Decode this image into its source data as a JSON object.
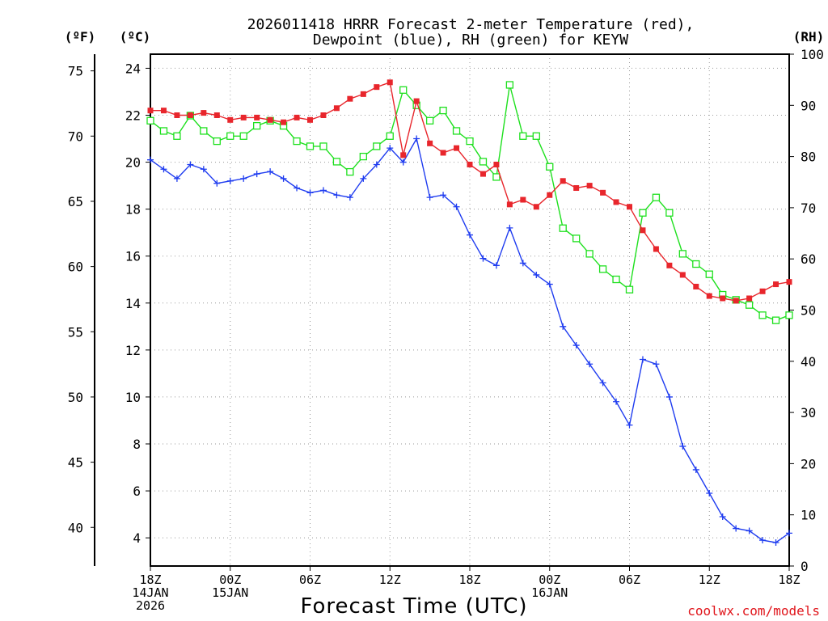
{
  "chart_data": {
    "type": "line",
    "title": [
      "2026011418 HRRR Forecast 2-meter Temperature (red),",
      "Dewpoint (blue), RH (green) for KEYW"
    ],
    "xlabel": "Forecast Time (UTC)",
    "credit": "coolwx.com/models",
    "unit_labels": {
      "fahrenheit": "(ºF)",
      "celsius": "(ºC)",
      "rh": "(RH)"
    },
    "ylim_celsius": [
      2.8,
      24.6
    ],
    "ylim_rh": [
      0,
      100
    ],
    "celsius_ticks": [
      4,
      6,
      8,
      10,
      12,
      14,
      16,
      18,
      20,
      22,
      24
    ],
    "fahrenheit_ticks": [
      40,
      45,
      50,
      55,
      60,
      65,
      70,
      75
    ],
    "rh_ticks": [
      0,
      10,
      20,
      30,
      40,
      50,
      60,
      70,
      80,
      90,
      100
    ],
    "x_ticks": [
      {
        "hour": 0,
        "lines": [
          "18Z",
          "14JAN",
          "2026"
        ]
      },
      {
        "hour": 6,
        "lines": [
          "00Z",
          "15JAN"
        ]
      },
      {
        "hour": 12,
        "lines": [
          "06Z"
        ]
      },
      {
        "hour": 18,
        "lines": [
          "12Z"
        ]
      },
      {
        "hour": 24,
        "lines": [
          "18Z"
        ]
      },
      {
        "hour": 30,
        "lines": [
          "00Z",
          "16JAN"
        ]
      },
      {
        "hour": 36,
        "lines": [
          "06Z"
        ]
      },
      {
        "hour": 42,
        "lines": [
          "12Z"
        ]
      },
      {
        "hour": 48,
        "lines": [
          "18Z"
        ]
      }
    ],
    "x_hours": [
      0,
      1,
      2,
      3,
      4,
      5,
      6,
      7,
      8,
      9,
      10,
      11,
      12,
      13,
      14,
      15,
      16,
      17,
      18,
      19,
      20,
      21,
      22,
      23,
      24,
      25,
      26,
      27,
      28,
      29,
      30,
      31,
      32,
      33,
      34,
      35,
      36,
      37,
      38,
      39,
      40,
      41,
      42,
      43,
      44,
      45,
      46,
      47,
      48
    ],
    "series": [
      {
        "name": "Temperature",
        "unit": "C",
        "color": "#e8262c",
        "marker": "filled-square",
        "values": [
          22.2,
          22.2,
          22.0,
          22.0,
          22.1,
          22.0,
          21.8,
          21.9,
          21.9,
          21.8,
          21.7,
          21.9,
          21.8,
          22.0,
          22.3,
          22.7,
          22.9,
          23.2,
          23.4,
          20.3,
          22.6,
          20.8,
          20.4,
          20.6,
          19.9,
          19.5,
          19.9,
          18.2,
          18.4,
          18.1,
          18.6,
          19.2,
          18.9,
          19.0,
          18.7,
          18.3,
          18.1,
          17.1,
          16.3,
          15.6,
          15.2,
          14.7,
          14.3,
          14.2,
          14.1,
          14.2,
          14.5,
          14.8,
          14.9
        ]
      },
      {
        "name": "Dewpoint",
        "unit": "C",
        "color": "#1f3cf0",
        "marker": "plus",
        "values": [
          20.1,
          19.7,
          19.3,
          19.9,
          19.7,
          19.1,
          19.2,
          19.3,
          19.5,
          19.6,
          19.3,
          18.9,
          18.7,
          18.8,
          18.6,
          18.5,
          19.3,
          19.9,
          20.6,
          20.0,
          21.0,
          18.5,
          18.6,
          18.1,
          16.9,
          15.9,
          15.6,
          17.2,
          15.7,
          15.2,
          14.8,
          13.0,
          12.2,
          11.4,
          10.6,
          9.8,
          8.8,
          11.6,
          11.4,
          10.0,
          7.9,
          6.9,
          5.9,
          4.9,
          4.4,
          4.3,
          3.9,
          3.8,
          4.2
        ]
      },
      {
        "name": "RH",
        "unit": "%",
        "color": "#1ee01e",
        "marker": "open-square",
        "values": [
          87,
          85,
          84,
          88,
          85,
          83,
          84,
          84,
          86,
          87,
          86,
          83,
          82,
          82,
          79,
          77,
          80,
          82,
          84,
          93,
          90,
          87,
          89,
          85,
          83,
          79,
          76,
          94,
          84,
          84,
          78,
          66,
          64,
          61,
          58,
          56,
          54,
          69,
          72,
          69,
          61,
          59,
          57,
          53,
          52,
          51,
          49,
          48,
          49
        ]
      }
    ]
  }
}
